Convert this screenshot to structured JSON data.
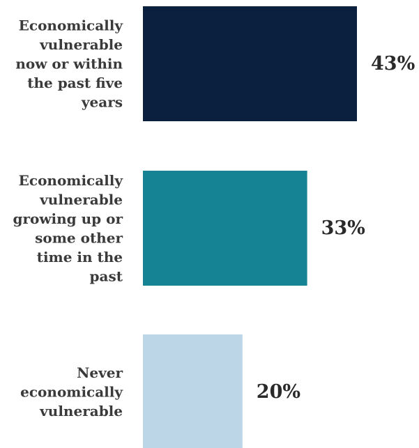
{
  "chart_data": {
    "type": "bar",
    "orientation": "horizontal",
    "title": "",
    "xlabel": "",
    "ylabel": "",
    "xlim": [
      0,
      43
    ],
    "grid": false,
    "legend": "none",
    "categories": [
      "Economically vulnerable now or within the past five years",
      "Economically vulnerable growing up or some other time in the past",
      "Never economically vulnerable"
    ],
    "category_label_lines": [
      [
        "Economically",
        "vulnerable",
        "now or within",
        "the past five",
        "years"
      ],
      [
        "Economically",
        "vulnerable",
        "growing up or",
        "some other",
        "time in the",
        "past"
      ],
      [
        "Never",
        "economically",
        "vulnerable"
      ]
    ],
    "values": [
      43,
      33,
      20
    ],
    "value_labels": [
      "43%",
      "33%",
      "20%"
    ],
    "colors": [
      "#0b1f3f",
      "#168394",
      "#bcd6e8"
    ]
  }
}
